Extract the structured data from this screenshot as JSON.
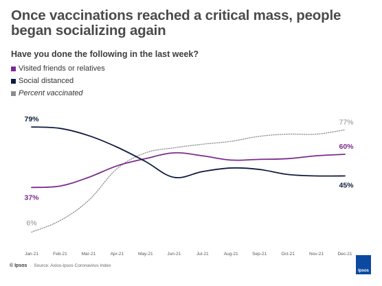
{
  "title": "Once vaccinations reached a critical mass, people began socializing again",
  "subtitle": "Have you done the following in the last week?",
  "legend": [
    {
      "label": "Visited friends or relatives",
      "color": "#7b2a8c"
    },
    {
      "label": "Social distanced",
      "color": "#0d1b3e"
    },
    {
      "label": "Percent vaccinated",
      "color": "#8c8c8c"
    }
  ],
  "footer": {
    "brand": "© Ipsos",
    "source": "Source: Axios-Ipsos Coronavirus Index"
  },
  "logo_text": "Ipsos",
  "chart_data": {
    "type": "line",
    "x": [
      "Jan-21",
      "Feb-21",
      "Mar-21",
      "Apr-21",
      "May-21",
      "Jun-21",
      "Jul-21",
      "Aug-21",
      "Sep-21",
      "Oct-21",
      "Nov-21",
      "Dec-21"
    ],
    "series": [
      {
        "name": "Visited friends or relatives",
        "color": "#7b2a8c",
        "style": "solid",
        "values": [
          37,
          38,
          44,
          52,
          57,
          61,
          59,
          56,
          56.5,
          57,
          59,
          60
        ],
        "labels": {
          "start": "37%",
          "end": "60%"
        }
      },
      {
        "name": "Social distanced",
        "color": "#0d1b3e",
        "style": "solid",
        "values": [
          79,
          78,
          73,
          65,
          55,
          44,
          48,
          50.5,
          49.5,
          46,
          45,
          45
        ],
        "labels": {
          "start": "79%",
          "end": "45%"
        }
      },
      {
        "name": "Percent vaccinated",
        "color": "#8c8c8c",
        "style": "dotted",
        "values": [
          6,
          14,
          28,
          50,
          61,
          64.5,
          67,
          69,
          72.5,
          74,
          74,
          77
        ],
        "labels": {
          "start": "6%",
          "end": "77%"
        }
      }
    ],
    "ylim": [
      0,
      90
    ],
    "grid": false
  }
}
